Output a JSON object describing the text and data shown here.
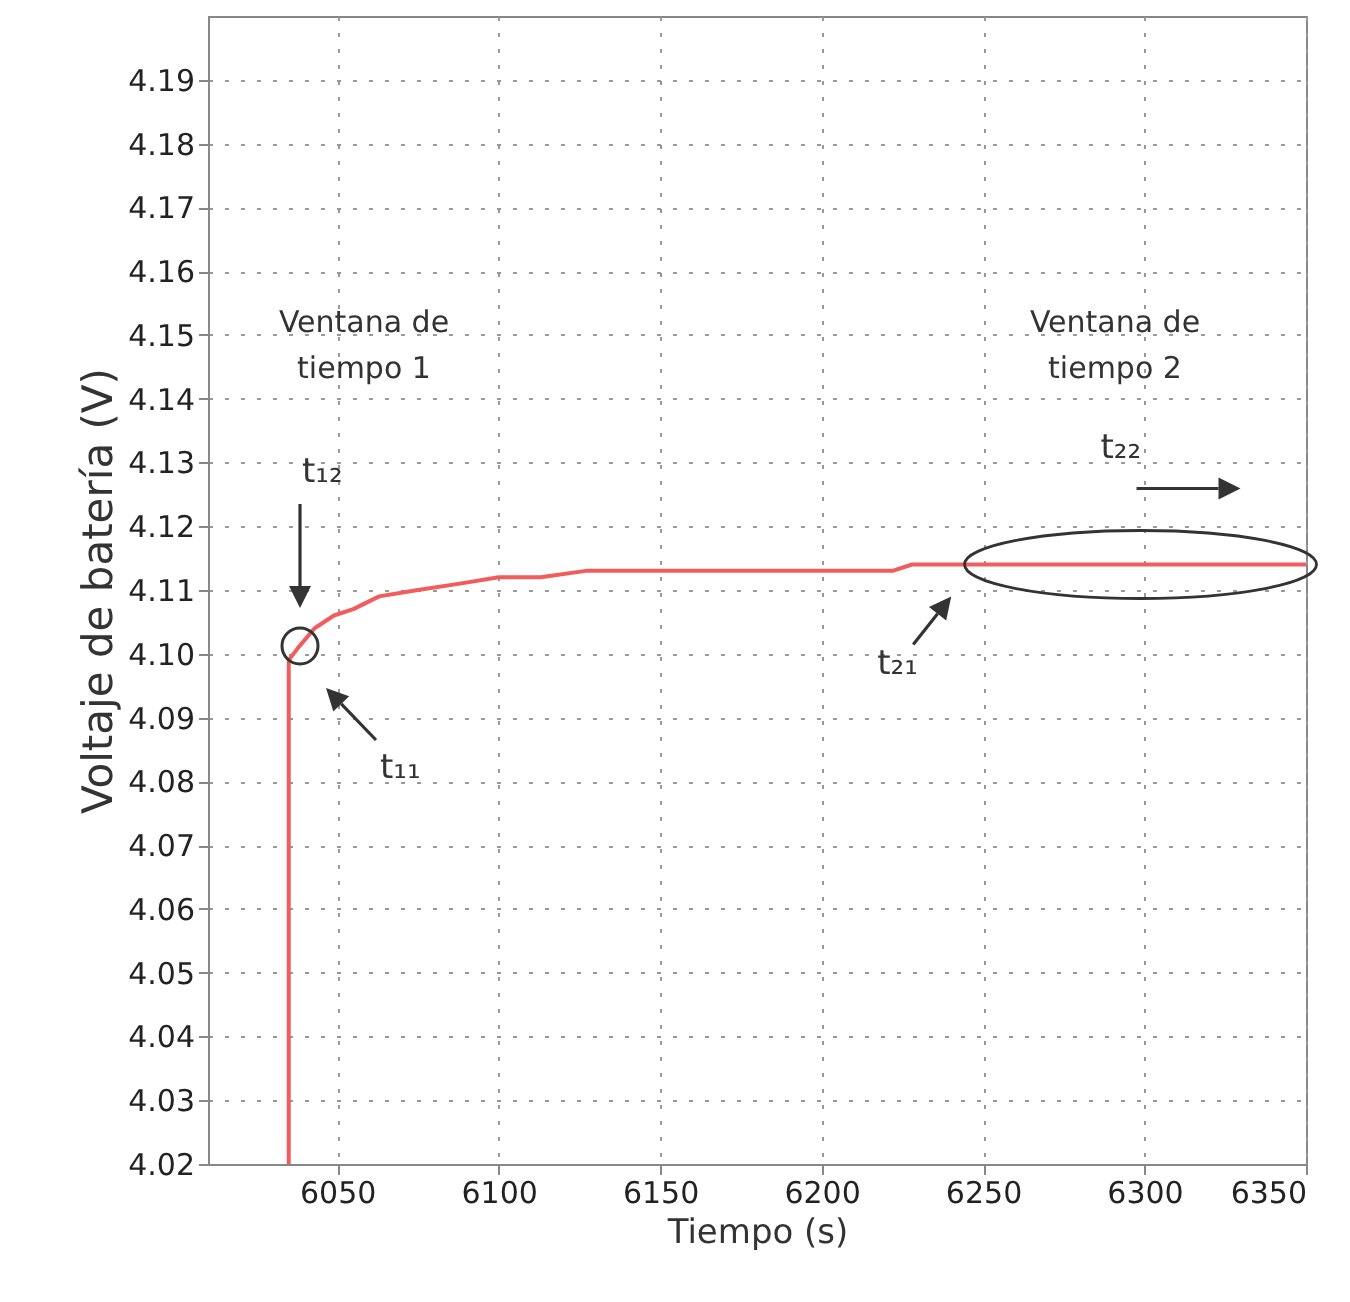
{
  "chart_data": {
    "type": "line",
    "xlabel": "Tiempo (s)",
    "ylabel": "Voltaje de batería (V)",
    "x": [
      6035,
      6035,
      6038,
      6043,
      6049,
      6055,
      6063,
      6075,
      6088,
      6100,
      6113,
      6127,
      6222,
      6228,
      6350
    ],
    "series": [
      {
        "color": "#f25c5c",
        "values": [
          4.02,
          4.099,
          4.101,
          4.104,
          4.106,
          4.107,
          4.109,
          4.11,
          4.111,
          4.112,
          4.112,
          4.113,
          4.113,
          4.114,
          4.114
        ]
      }
    ],
    "xlim": [
      6010,
      6350
    ],
    "xticks": [
      6050,
      6100,
      6150,
      6200,
      6250,
      6300,
      6350
    ],
    "ylim": [
      4.02,
      4.2
    ],
    "yticks": [
      4.02,
      4.03,
      4.04,
      4.05,
      4.06,
      4.07,
      4.08,
      4.09,
      {
        "value": 4.1,
        "label": "4.10"
      },
      4.11,
      4.12,
      4.13,
      4.14,
      4.15,
      4.16,
      4.17,
      4.18,
      4.19
    ],
    "grid": true,
    "line_style": "solid",
    "marker": "none",
    "annotations": [
      "Ventana de tiempo 1",
      "Ventana de tiempo 2",
      "t₁₂",
      "t₁₁",
      {
        "text": "t₂₁",
        "x": 6242,
        "y": 4.114
      },
      {
        "text": "t₂₂",
        "x": 6300,
        "y": 4.114
      }
    ]
  }
}
